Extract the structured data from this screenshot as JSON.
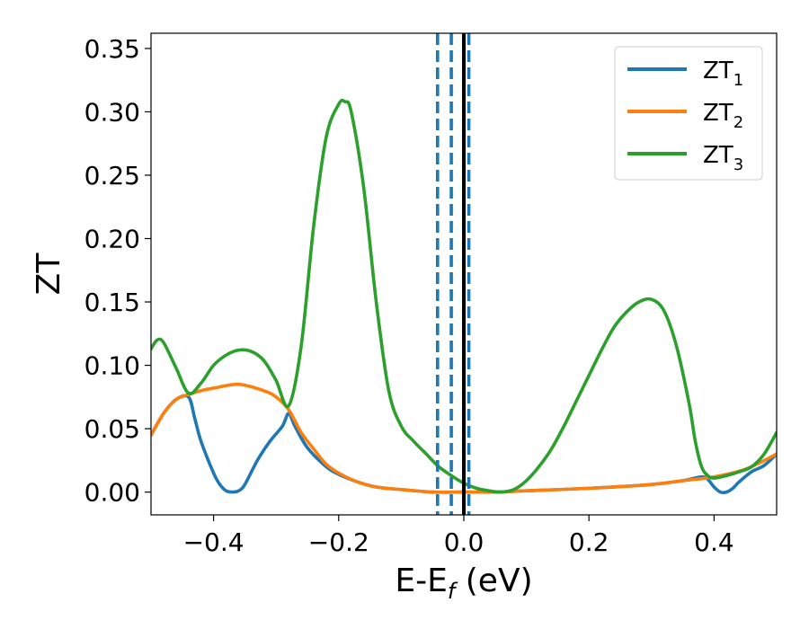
{
  "chart_data": {
    "type": "line",
    "title": "",
    "ylabel": "ZT",
    "xlabel": {
      "main": "E-E",
      "sub": "f",
      "tail": " (eV)"
    },
    "xlim": [
      -0.5,
      0.5
    ],
    "ylim": [
      -0.018,
      0.362
    ],
    "xticks": [
      -0.4,
      -0.2,
      0.0,
      0.2,
      0.4
    ],
    "xtick_labels": [
      "−0.4",
      "−0.2",
      "0.0",
      "0.2",
      "0.4"
    ],
    "yticks": [
      0.0,
      0.05,
      0.1,
      0.15,
      0.2,
      0.25,
      0.3,
      0.35
    ],
    "ytick_labels": [
      "0.00",
      "0.05",
      "0.10",
      "0.15",
      "0.20",
      "0.25",
      "0.30",
      "0.35"
    ],
    "grid": false,
    "legend_position": "top-right",
    "series": [
      {
        "name": "ZT",
        "sub": "1",
        "color": "#1f77b4",
        "points": [
          [
            -0.5,
            0.045
          ],
          [
            -0.48,
            0.062
          ],
          [
            -0.46,
            0.073
          ],
          [
            -0.44,
            0.075
          ],
          [
            -0.43,
            0.058
          ],
          [
            -0.42,
            0.04
          ],
          [
            -0.4,
            0.015
          ],
          [
            -0.39,
            0.006
          ],
          [
            -0.38,
            0.001
          ],
          [
            -0.37,
            0.0
          ],
          [
            -0.36,
            0.001
          ],
          [
            -0.35,
            0.006
          ],
          [
            -0.33,
            0.025
          ],
          [
            -0.31,
            0.04
          ],
          [
            -0.29,
            0.052
          ],
          [
            -0.28,
            0.062
          ],
          [
            -0.27,
            0.052
          ],
          [
            -0.25,
            0.035
          ],
          [
            -0.22,
            0.02
          ],
          [
            -0.2,
            0.014
          ],
          [
            -0.17,
            0.008
          ],
          [
            -0.14,
            0.004
          ],
          [
            -0.1,
            0.002
          ],
          [
            -0.05,
            0.0
          ],
          [
            0.0,
            0.0
          ],
          [
            0.05,
            0.0
          ],
          [
            0.1,
            0.001
          ],
          [
            0.2,
            0.003
          ],
          [
            0.3,
            0.006
          ],
          [
            0.35,
            0.009
          ],
          [
            0.38,
            0.012
          ],
          [
            0.39,
            0.01
          ],
          [
            0.4,
            0.004
          ],
          [
            0.41,
            0.0
          ],
          [
            0.42,
            0.0
          ],
          [
            0.43,
            0.003
          ],
          [
            0.44,
            0.008
          ],
          [
            0.46,
            0.016
          ],
          [
            0.48,
            0.021
          ],
          [
            0.5,
            0.03
          ]
        ]
      },
      {
        "name": "ZT",
        "sub": "2",
        "color": "#ff7f0e",
        "points": [
          [
            -0.5,
            0.045
          ],
          [
            -0.48,
            0.062
          ],
          [
            -0.46,
            0.073
          ],
          [
            -0.44,
            0.077
          ],
          [
            -0.42,
            0.08
          ],
          [
            -0.4,
            0.082
          ],
          [
            -0.36,
            0.085
          ],
          [
            -0.32,
            0.08
          ],
          [
            -0.3,
            0.075
          ],
          [
            -0.28,
            0.065
          ],
          [
            -0.26,
            0.047
          ],
          [
            -0.24,
            0.034
          ],
          [
            -0.22,
            0.022
          ],
          [
            -0.2,
            0.015
          ],
          [
            -0.17,
            0.008
          ],
          [
            -0.14,
            0.004
          ],
          [
            -0.1,
            0.002
          ],
          [
            -0.05,
            0.0
          ],
          [
            0.0,
            0.0
          ],
          [
            0.05,
            0.0
          ],
          [
            0.1,
            0.001
          ],
          [
            0.2,
            0.003
          ],
          [
            0.3,
            0.006
          ],
          [
            0.35,
            0.009
          ],
          [
            0.4,
            0.012
          ],
          [
            0.45,
            0.018
          ],
          [
            0.5,
            0.03
          ]
        ]
      },
      {
        "name": "ZT",
        "sub": "3",
        "color": "#2ca02c",
        "points": [
          [
            -0.5,
            0.113
          ],
          [
            -0.49,
            0.12
          ],
          [
            -0.48,
            0.118
          ],
          [
            -0.46,
            0.098
          ],
          [
            -0.44,
            0.078
          ],
          [
            -0.42,
            0.086
          ],
          [
            -0.4,
            0.1
          ],
          [
            -0.38,
            0.108
          ],
          [
            -0.36,
            0.112
          ],
          [
            -0.34,
            0.111
          ],
          [
            -0.32,
            0.104
          ],
          [
            -0.3,
            0.088
          ],
          [
            -0.28,
            0.068
          ],
          [
            -0.26,
            0.115
          ],
          [
            -0.24,
            0.21
          ],
          [
            -0.22,
            0.28
          ],
          [
            -0.2,
            0.306
          ],
          [
            -0.19,
            0.308
          ],
          [
            -0.18,
            0.3
          ],
          [
            -0.16,
            0.24
          ],
          [
            -0.14,
            0.15
          ],
          [
            -0.12,
            0.08
          ],
          [
            -0.1,
            0.052
          ],
          [
            -0.08,
            0.04
          ],
          [
            -0.06,
            0.03
          ],
          [
            -0.04,
            0.02
          ],
          [
            -0.02,
            0.013
          ],
          [
            0.0,
            0.007
          ],
          [
            0.02,
            0.003
          ],
          [
            0.04,
            0.001
          ],
          [
            0.06,
            0.0
          ],
          [
            0.08,
            0.002
          ],
          [
            0.1,
            0.009
          ],
          [
            0.12,
            0.02
          ],
          [
            0.14,
            0.034
          ],
          [
            0.16,
            0.052
          ],
          [
            0.18,
            0.072
          ],
          [
            0.2,
            0.092
          ],
          [
            0.22,
            0.112
          ],
          [
            0.24,
            0.13
          ],
          [
            0.26,
            0.142
          ],
          [
            0.28,
            0.15
          ],
          [
            0.3,
            0.152
          ],
          [
            0.32,
            0.143
          ],
          [
            0.34,
            0.115
          ],
          [
            0.36,
            0.07
          ],
          [
            0.37,
            0.04
          ],
          [
            0.38,
            0.02
          ],
          [
            0.39,
            0.013
          ],
          [
            0.4,
            0.011
          ],
          [
            0.42,
            0.013
          ],
          [
            0.44,
            0.016
          ],
          [
            0.46,
            0.02
          ],
          [
            0.48,
            0.03
          ],
          [
            0.5,
            0.047
          ]
        ]
      }
    ],
    "vlines": [
      {
        "x": -0.042,
        "style": "dashed",
        "color": "#1f77b4"
      },
      {
        "x": -0.02,
        "style": "dashed",
        "color": "#1f77b4"
      },
      {
        "x": 0.008,
        "style": "dashed",
        "color": "#1f77b4"
      },
      {
        "x": 0.0,
        "style": "solid",
        "color": "#000000"
      }
    ]
  }
}
